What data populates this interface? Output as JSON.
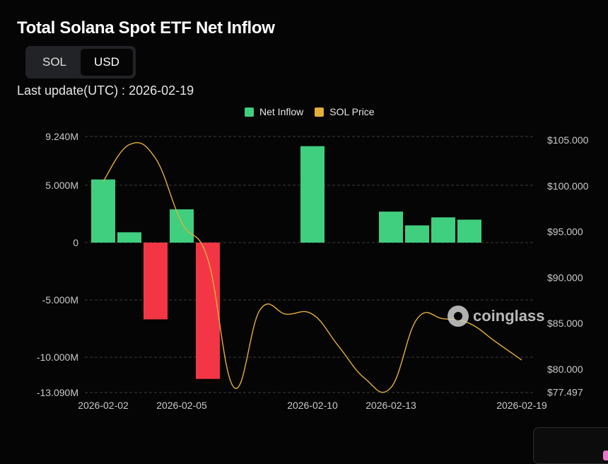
{
  "title": "Total Solana Spot ETF Net Inflow",
  "toggle": {
    "options": [
      "SOL",
      "USD"
    ],
    "selected": "USD"
  },
  "last_update": "Last update(UTC) : 2026-02-19",
  "watermark": "coinglass",
  "colors": {
    "inflow_positive": "#3fcf7f",
    "inflow_negative": "#f23645",
    "price_line": "#e3ae3a",
    "grid": "#3a3a3a",
    "axis_text": "#c8c8c8"
  },
  "chart_data": {
    "type": "bar",
    "x_tick_labels": [
      "2026-02-02",
      "2026-02-05",
      "2026-02-10",
      "2026-02-13",
      "2026-02-19"
    ],
    "left_axis_ticks": [
      "9.240M",
      "5.000M",
      "0",
      "-5.000M",
      "-10.000M",
      "-13.090M"
    ],
    "right_axis_ticks": [
      "$105.000",
      "$100.000",
      "$95.000",
      "$90.000",
      "$85.000",
      "$80.000",
      "$77.497"
    ],
    "y_left_range": [
      -13090000,
      9240000
    ],
    "y_right_range": [
      77.497,
      106
    ],
    "legend": [
      "Net Inflow",
      "SOL Price"
    ],
    "categories": [
      "2026-02-02",
      "2026-02-03",
      "2026-02-04",
      "2026-02-05",
      "2026-02-06",
      "2026-02-07",
      "2026-02-08",
      "2026-02-09",
      "2026-02-10",
      "2026-02-11",
      "2026-02-12",
      "2026-02-13",
      "2026-02-14",
      "2026-02-15",
      "2026-02-16",
      "2026-02-17",
      "2026-02-19"
    ],
    "series": [
      {
        "name": "Net Inflow",
        "type": "bar",
        "axis": "left",
        "values": [
          5500000,
          900000,
          -6700000,
          2900000,
          -11900000,
          null,
          null,
          null,
          8400000,
          null,
          null,
          2700000,
          1500000,
          2200000,
          2000000,
          null,
          null
        ]
      },
      {
        "name": "SOL Price",
        "type": "line",
        "axis": "right",
        "values": [
          100.5,
          104.5,
          103.0,
          96.0,
          92.0,
          78.0,
          86.5,
          86.0,
          86.0,
          82.5,
          79.0,
          78.0,
          85.5,
          85.5,
          85.0,
          83.0,
          81.0
        ]
      }
    ]
  }
}
